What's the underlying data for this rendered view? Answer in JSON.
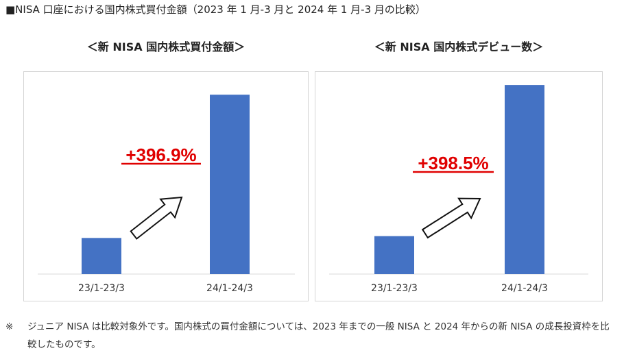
{
  "title": "■NISA 口座における国内株式買付金額（2023 年 1 月-3 月と 2024 年 1 月-3 月の比較）",
  "chart_data": [
    {
      "type": "bar",
      "title": "＜新 NISA 国内株式買付金額＞",
      "categories": [
        "23/1-23/3",
        "24/1-24/3"
      ],
      "values": [
        100,
        496.9
      ],
      "ylim": [
        0,
        560
      ],
      "grid": false,
      "annotation": "+396.9%",
      "bar_color": "#4472C4"
    },
    {
      "type": "bar",
      "title": "＜新 NISA 国内株式デビュー数＞",
      "categories": [
        "23/1-23/3",
        "24/1-24/3"
      ],
      "values": [
        100,
        498.5
      ],
      "ylim": [
        0,
        533
      ],
      "grid": false,
      "annotation": "+398.5%",
      "bar_color": "#4472C4"
    }
  ],
  "colors": {
    "annotation": "#E00000",
    "axis": "#d9d9d9"
  },
  "footnote": {
    "mark": "※",
    "text": "ジュニア NISA は比較対象外です。国内株式の買付金額については、2023 年までの一般 NISA と 2024 年からの新 NISA の成長投資枠を比較したものです。"
  }
}
